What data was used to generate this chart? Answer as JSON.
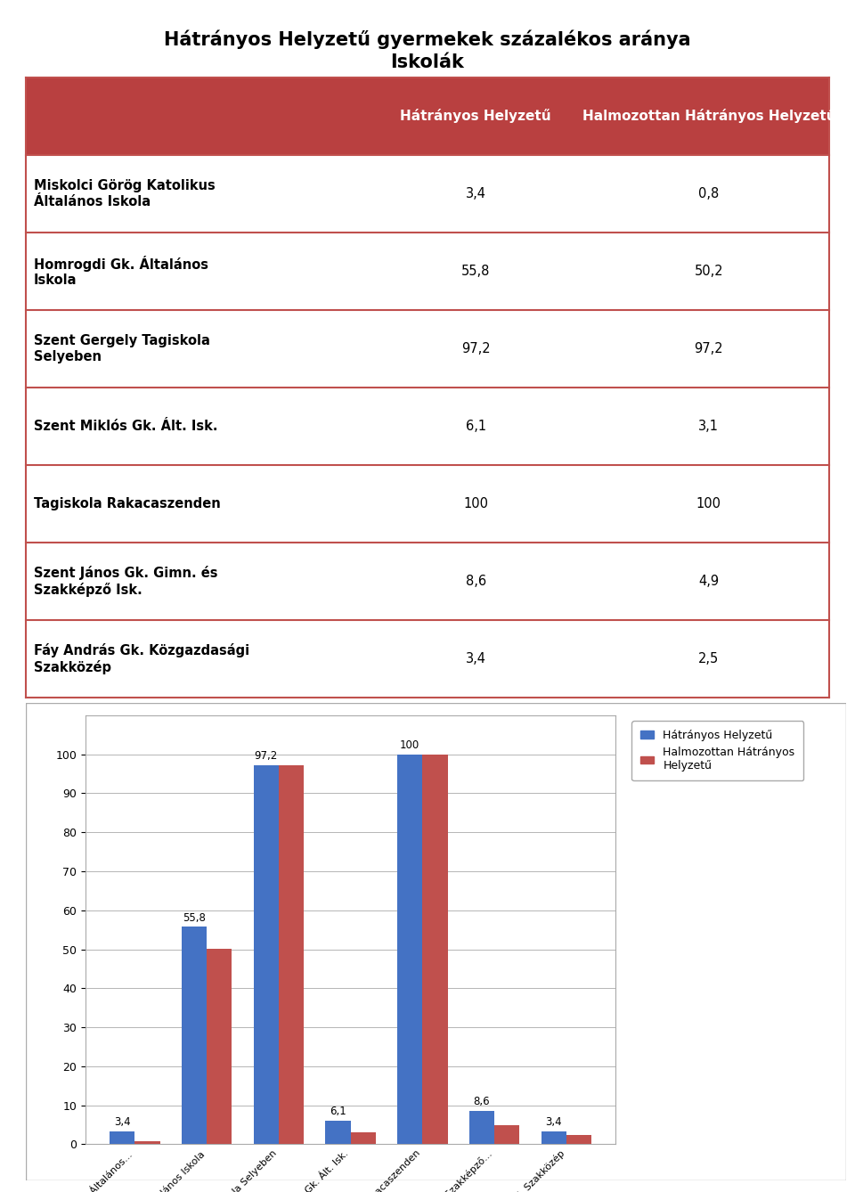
{
  "title_line1": "Hátrányos Helyzetű gyermekek százalékos aránya",
  "title_line2": "Iskolák",
  "table_header": [
    "Hátrányos Helyzetű",
    "Halmozottan Hátrányos Helyzetű"
  ],
  "schools": [
    "Miskolci Görög Katolikus\nÁltalános Iskola",
    "Homrogdi Gk. Általános\nIskola",
    "Szent Gergely Tagiskola\nSelyeben",
    "Szent Miklós Gk. Ált. Isk.",
    "Tagiskola Rakacaszenden",
    "Szent János Gk. Gimn. és\nSzakképző Isk.",
    "Fáy András Gk. Közgazdasági\nSzakközép"
  ],
  "hatran": [
    3.4,
    55.8,
    97.2,
    6.1,
    100.0,
    8.6,
    3.4
  ],
  "halmoz": [
    0.8,
    50.2,
    97.2,
    3.1,
    100.0,
    4.9,
    2.5
  ],
  "bar_labels_short": [
    "Miskolci Görög Katolikus Általános...",
    "Homrogdi Gk. Általános Iskola",
    "Szent Gergely Tagiskola Selyeben",
    "Szent Miklós Gk. Ált. Isk.",
    "Tagiskola Rakacaszenden",
    "Szent János Gk. Gimn. és Szakképző...",
    "Fáy András Gk. Közgazd. Szakközép"
  ],
  "color_blue": "#4472C4",
  "color_red": "#C0504D",
  "color_header": "#B94040",
  "color_border": "#C0504D",
  "legend_hatran": "Hátrányos Helyzetű",
  "legend_halmoz": "Halmozottan Hátrányos\nHelyzetű",
  "yticks": [
    0,
    10,
    20,
    30,
    40,
    50,
    60,
    70,
    80,
    90,
    100
  ],
  "hatran_labels": [
    "3,4",
    "55,8",
    "97,2",
    "6,1",
    "100",
    "8,6",
    "3,4"
  ]
}
